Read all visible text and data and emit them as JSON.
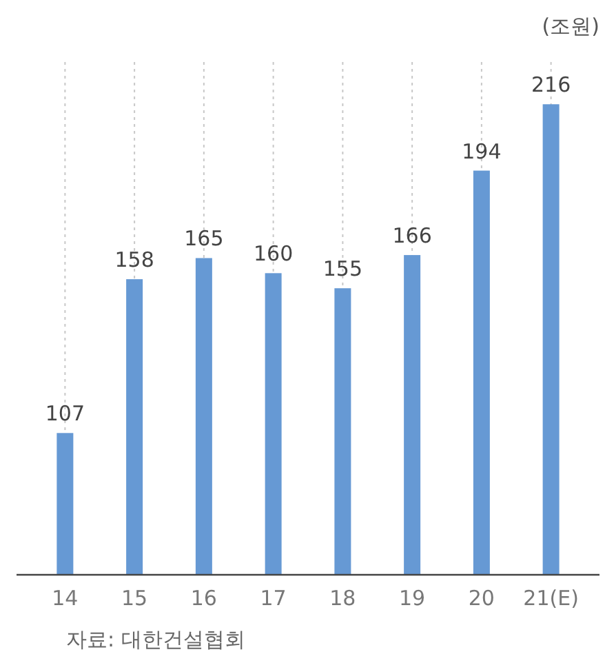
{
  "chart_data": {
    "type": "bar",
    "ylabel": "(조원)",
    "categories": [
      "14",
      "15",
      "16",
      "17",
      "18",
      "19",
      "20",
      "21(E)"
    ],
    "values": [
      107,
      158,
      165,
      160,
      155,
      166,
      194,
      216
    ],
    "color": "#6699d4",
    "ylim": [
      60,
      230
    ],
    "grid": "x",
    "data_labels": true,
    "annotations": [
      "자료: 대한건설협회"
    ]
  }
}
